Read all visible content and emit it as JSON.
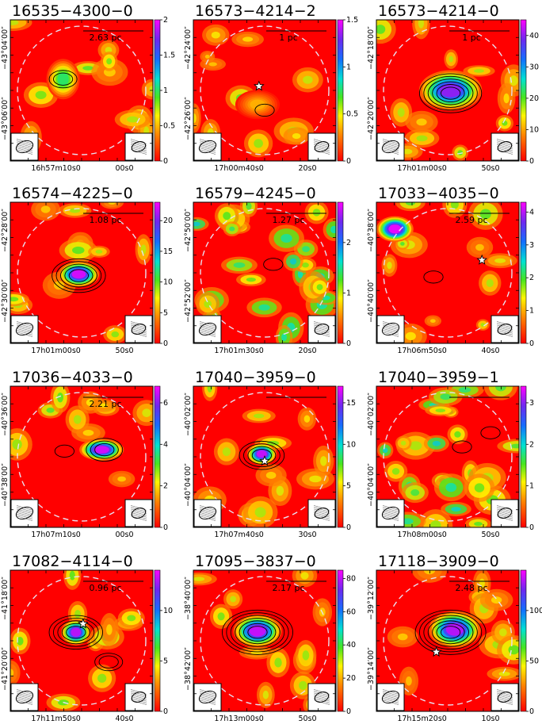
{
  "chart_data": [
    {
      "type": "heatmap",
      "title": "16535−4300−0",
      "scale_label": "2.63 pc",
      "colorbar": {
        "max": 2.0,
        "ticks": [
          "0",
          "0.5",
          "1",
          "1.5",
          "2"
        ]
      },
      "ra_ticks": [
        "16h57m10s0",
        "00s0"
      ],
      "dec_ticks": [
        "−43°04′00″",
        "−43°06′00″"
      ],
      "sources": [
        {
          "x": 0.37,
          "y": 0.42,
          "peak": 1.0,
          "rx": 0.09,
          "ry": 0.11
        }
      ],
      "contours": [
        {
          "x": 0.37,
          "y": 0.42,
          "levels": 2
        }
      ],
      "markers": [],
      "noise_seed": 1
    },
    {
      "type": "heatmap",
      "title": "16573−4214−2",
      "scale_label": "1 pc",
      "colorbar": {
        "max": 1.5,
        "ticks": [
          "0",
          "0.5",
          "1",
          "1.5"
        ]
      },
      "ra_ticks": [
        "17h00m40s0",
        "20s0"
      ],
      "dec_ticks": [
        "−42°24′00″",
        "−42°26′00″"
      ],
      "sources": [
        {
          "x": 0.45,
          "y": 0.6,
          "peak": 0.35,
          "rx": 0.12,
          "ry": 0.08
        }
      ],
      "contours": [
        {
          "x": 0.5,
          "y": 0.64,
          "levels": 1
        }
      ],
      "markers": [
        {
          "kind": "star",
          "x": 0.46,
          "y": 0.47
        }
      ],
      "noise_seed": 2
    },
    {
      "type": "heatmap",
      "title": "16573−4214−0",
      "scale_label": "1 pc",
      "colorbar": {
        "max": 45,
        "ticks": [
          "0",
          "10",
          "20",
          "30",
          "40"
        ]
      },
      "ra_ticks": [
        "17h01m00s0",
        "50s0"
      ],
      "dec_ticks": [
        "−42°18′00″",
        "−42°20′00″"
      ],
      "sources": [
        {
          "x": 0.52,
          "y": 0.5,
          "peak": 40,
          "rx": 0.17,
          "ry": 0.11
        }
      ],
      "contours": [
        {
          "x": 0.52,
          "y": 0.52,
          "levels": 6
        }
      ],
      "markers": [],
      "noise_seed": 3
    },
    {
      "type": "heatmap",
      "title": "16574−4225−0",
      "scale_label": "1.08 pc",
      "colorbar": {
        "max": 23,
        "ticks": [
          "0",
          "5",
          "10",
          "15",
          "20"
        ]
      },
      "ra_ticks": [
        "17h01m00s0",
        "50s0"
      ],
      "dec_ticks": [
        "−42°28′00″",
        "−42°30′00″"
      ],
      "sources": [
        {
          "x": 0.48,
          "y": 0.51,
          "peak": 22,
          "rx": 0.11,
          "ry": 0.07
        }
      ],
      "contours": [
        {
          "x": 0.48,
          "y": 0.52,
          "levels": 5
        }
      ],
      "markers": [],
      "noise_seed": 4
    },
    {
      "type": "heatmap",
      "title": "16579−4245−0",
      "scale_label": "1.27 pc",
      "colorbar": {
        "max": 2.8,
        "ticks": [
          "0",
          "1",
          "2"
        ]
      },
      "ra_ticks": [
        "17h01m30s0",
        "20s0"
      ],
      "dec_ticks": [
        "−42°50′00″",
        "−42°52′00″"
      ],
      "sources": [],
      "contours": [
        {
          "x": 0.56,
          "y": 0.44,
          "levels": 1
        }
      ],
      "markers": [],
      "noise_seed": 5
    },
    {
      "type": "heatmap",
      "title": "17033−4035−0",
      "scale_label": "2.59 pc",
      "colorbar": {
        "max": 4.3,
        "ticks": [
          "0",
          "1",
          "2",
          "3",
          "4"
        ]
      },
      "ra_ticks": [
        "17h06m50s0",
        "40s0"
      ],
      "dec_ticks": [
        "−40°38′00″",
        "−40°40′00″"
      ],
      "sources": [
        {
          "x": 0.13,
          "y": 0.19,
          "peak": 4.2,
          "rx": 0.1,
          "ry": 0.07
        }
      ],
      "contours": [
        {
          "x": 0.4,
          "y": 0.53,
          "levels": 1
        }
      ],
      "markers": [
        {
          "kind": "star",
          "x": 0.74,
          "y": 0.41
        }
      ],
      "noise_seed": 6
    },
    {
      "type": "heatmap",
      "title": "17036−4033−0",
      "scale_label": "2.21 pc",
      "colorbar": {
        "max": 6.8,
        "ticks": [
          "0",
          "2",
          "4",
          "6"
        ]
      },
      "ra_ticks": [
        "17h07m10s0",
        "00s0"
      ],
      "dec_ticks": [
        "−40°36′00″",
        "−40°38′00″"
      ],
      "sources": [
        {
          "x": 0.64,
          "y": 0.45,
          "peak": 6.5,
          "rx": 0.12,
          "ry": 0.06
        }
      ],
      "contours": [
        {
          "x": 0.66,
          "y": 0.45,
          "levels": 3
        },
        {
          "x": 0.38,
          "y": 0.46,
          "levels": 1
        }
      ],
      "markers": [],
      "noise_seed": 7
    },
    {
      "type": "heatmap",
      "title": "17040−3959−0",
      "scale_label": "",
      "colorbar": {
        "max": 17,
        "ticks": [
          "0",
          "5",
          "10",
          "15"
        ]
      },
      "ra_ticks": [
        "17h07m40s0",
        "30s0"
      ],
      "dec_ticks": [
        "−40°02′00″",
        "−40°04′00″"
      ],
      "sources": [
        {
          "x": 0.48,
          "y": 0.48,
          "peak": 16,
          "rx": 0.08,
          "ry": 0.06
        }
      ],
      "contours": [
        {
          "x": 0.48,
          "y": 0.49,
          "levels": 4
        }
      ],
      "markers": [
        {
          "kind": "star",
          "x": 0.5,
          "y": 0.53
        }
      ],
      "noise_seed": 8
    },
    {
      "type": "heatmap",
      "title": "17040−3959−1",
      "scale_label": "",
      "colorbar": {
        "max": 3.4,
        "ticks": [
          "0",
          "1",
          "2",
          "3"
        ]
      },
      "ra_ticks": [
        "17h08m00s0",
        "50s0"
      ],
      "dec_ticks": [
        "−40°02′00″",
        "−40°04′00″"
      ],
      "sources": [],
      "contours": [
        {
          "x": 0.6,
          "y": 0.43,
          "levels": 1
        },
        {
          "x": 0.8,
          "y": 0.33,
          "levels": 1
        }
      ],
      "markers": [],
      "noise_seed": 9
    },
    {
      "type": "heatmap",
      "title": "17082−4114−0",
      "scale_label": "0.96 pc",
      "colorbar": {
        "max": 14,
        "ticks": [
          "0",
          "5",
          "10"
        ]
      },
      "ra_ticks": [
        "17h11m50s0",
        "40s0"
      ],
      "dec_ticks": [
        "−41°18′00″",
        "−41°20′00″"
      ],
      "sources": [
        {
          "x": 0.46,
          "y": 0.44,
          "peak": 13,
          "rx": 0.08,
          "ry": 0.07
        }
      ],
      "contours": [
        {
          "x": 0.46,
          "y": 0.44,
          "levels": 5
        },
        {
          "x": 0.69,
          "y": 0.65,
          "levels": 2
        }
      ],
      "markers": [
        {
          "kind": "star",
          "x": 0.51,
          "y": 0.38
        }
      ],
      "noise_seed": 10
    },
    {
      "type": "heatmap",
      "title": "17095−3837−0",
      "scale_label": "2.17 pc",
      "colorbar": {
        "max": 85,
        "ticks": [
          "0",
          "20",
          "40",
          "60",
          "80"
        ]
      },
      "ra_ticks": [
        "17h13m00s0",
        "50s0"
      ],
      "dec_ticks": [
        "−38°40′00″",
        "−38°42′00″"
      ],
      "sources": [
        {
          "x": 0.45,
          "y": 0.43,
          "peak": 80,
          "rx": 0.13,
          "ry": 0.09
        }
      ],
      "contours": [
        {
          "x": 0.45,
          "y": 0.44,
          "levels": 7
        }
      ],
      "markers": [],
      "noise_seed": 11
    },
    {
      "type": "heatmap",
      "title": "17118−3909−0",
      "scale_label": "2.48 pc",
      "colorbar": {
        "max": 140,
        "ticks": [
          "0",
          "50",
          "100"
        ]
      },
      "ra_ticks": [
        "17h15m20s0",
        "10s0"
      ],
      "dec_ticks": [
        "−39°12′00″",
        "−39°14′00″"
      ],
      "sources": [
        {
          "x": 0.55,
          "y": 0.42,
          "peak": 130,
          "rx": 0.14,
          "ry": 0.1
        }
      ],
      "contours": [
        {
          "x": 0.52,
          "y": 0.44,
          "levels": 7
        }
      ],
      "markers": [
        {
          "kind": "star",
          "x": 0.42,
          "y": 0.58
        }
      ],
      "noise_seed": 12
    }
  ]
}
